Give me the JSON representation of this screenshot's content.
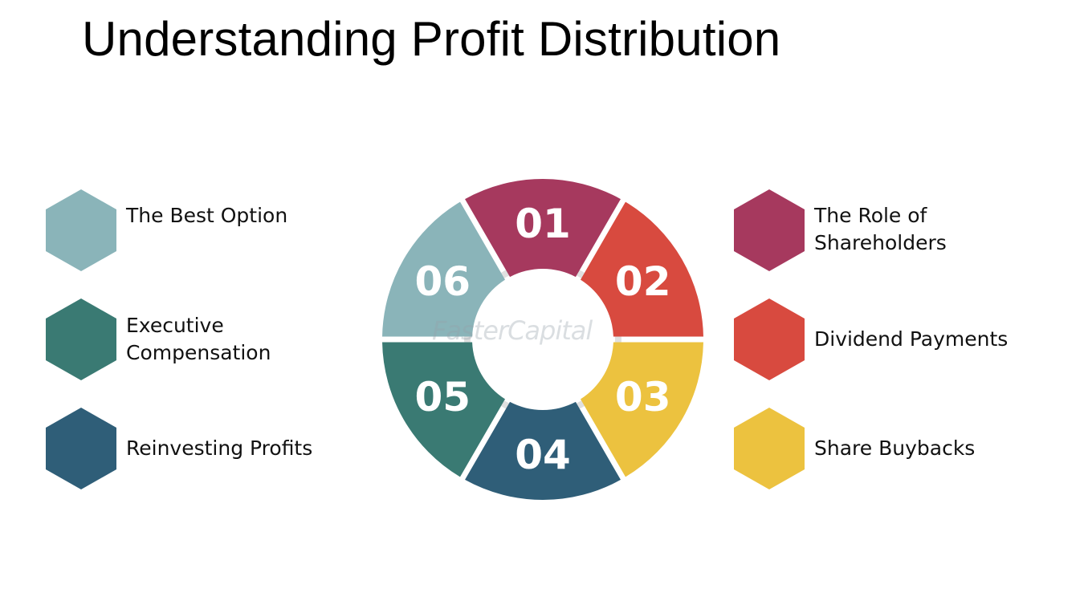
{
  "title": "Understanding Profit Distribution",
  "watermark": "FasterCapital",
  "items_left": [
    {
      "label": "The Best Option",
      "color": "#8ab4b9"
    },
    {
      "label": "Executive\nCompensation",
      "color": "#3a7a73"
    },
    {
      "label": "Reinvesting Profits",
      "color": "#2f5e78"
    }
  ],
  "items_right": [
    {
      "label": "The Role of\nShareholders",
      "color": "#a6395e"
    },
    {
      "label": "Dividend Payments",
      "color": "#d84a3f"
    },
    {
      "label": "Share Buybacks",
      "color": "#ecc23f"
    }
  ],
  "segments": [
    {
      "number": "01",
      "color": "#a6395e"
    },
    {
      "number": "02",
      "color": "#d84a3f"
    },
    {
      "number": "03",
      "color": "#ecc23f"
    },
    {
      "number": "04",
      "color": "#2f5e78"
    },
    {
      "number": "05",
      "color": "#3a7a73"
    },
    {
      "number": "06",
      "color": "#8ab4b9"
    }
  ]
}
